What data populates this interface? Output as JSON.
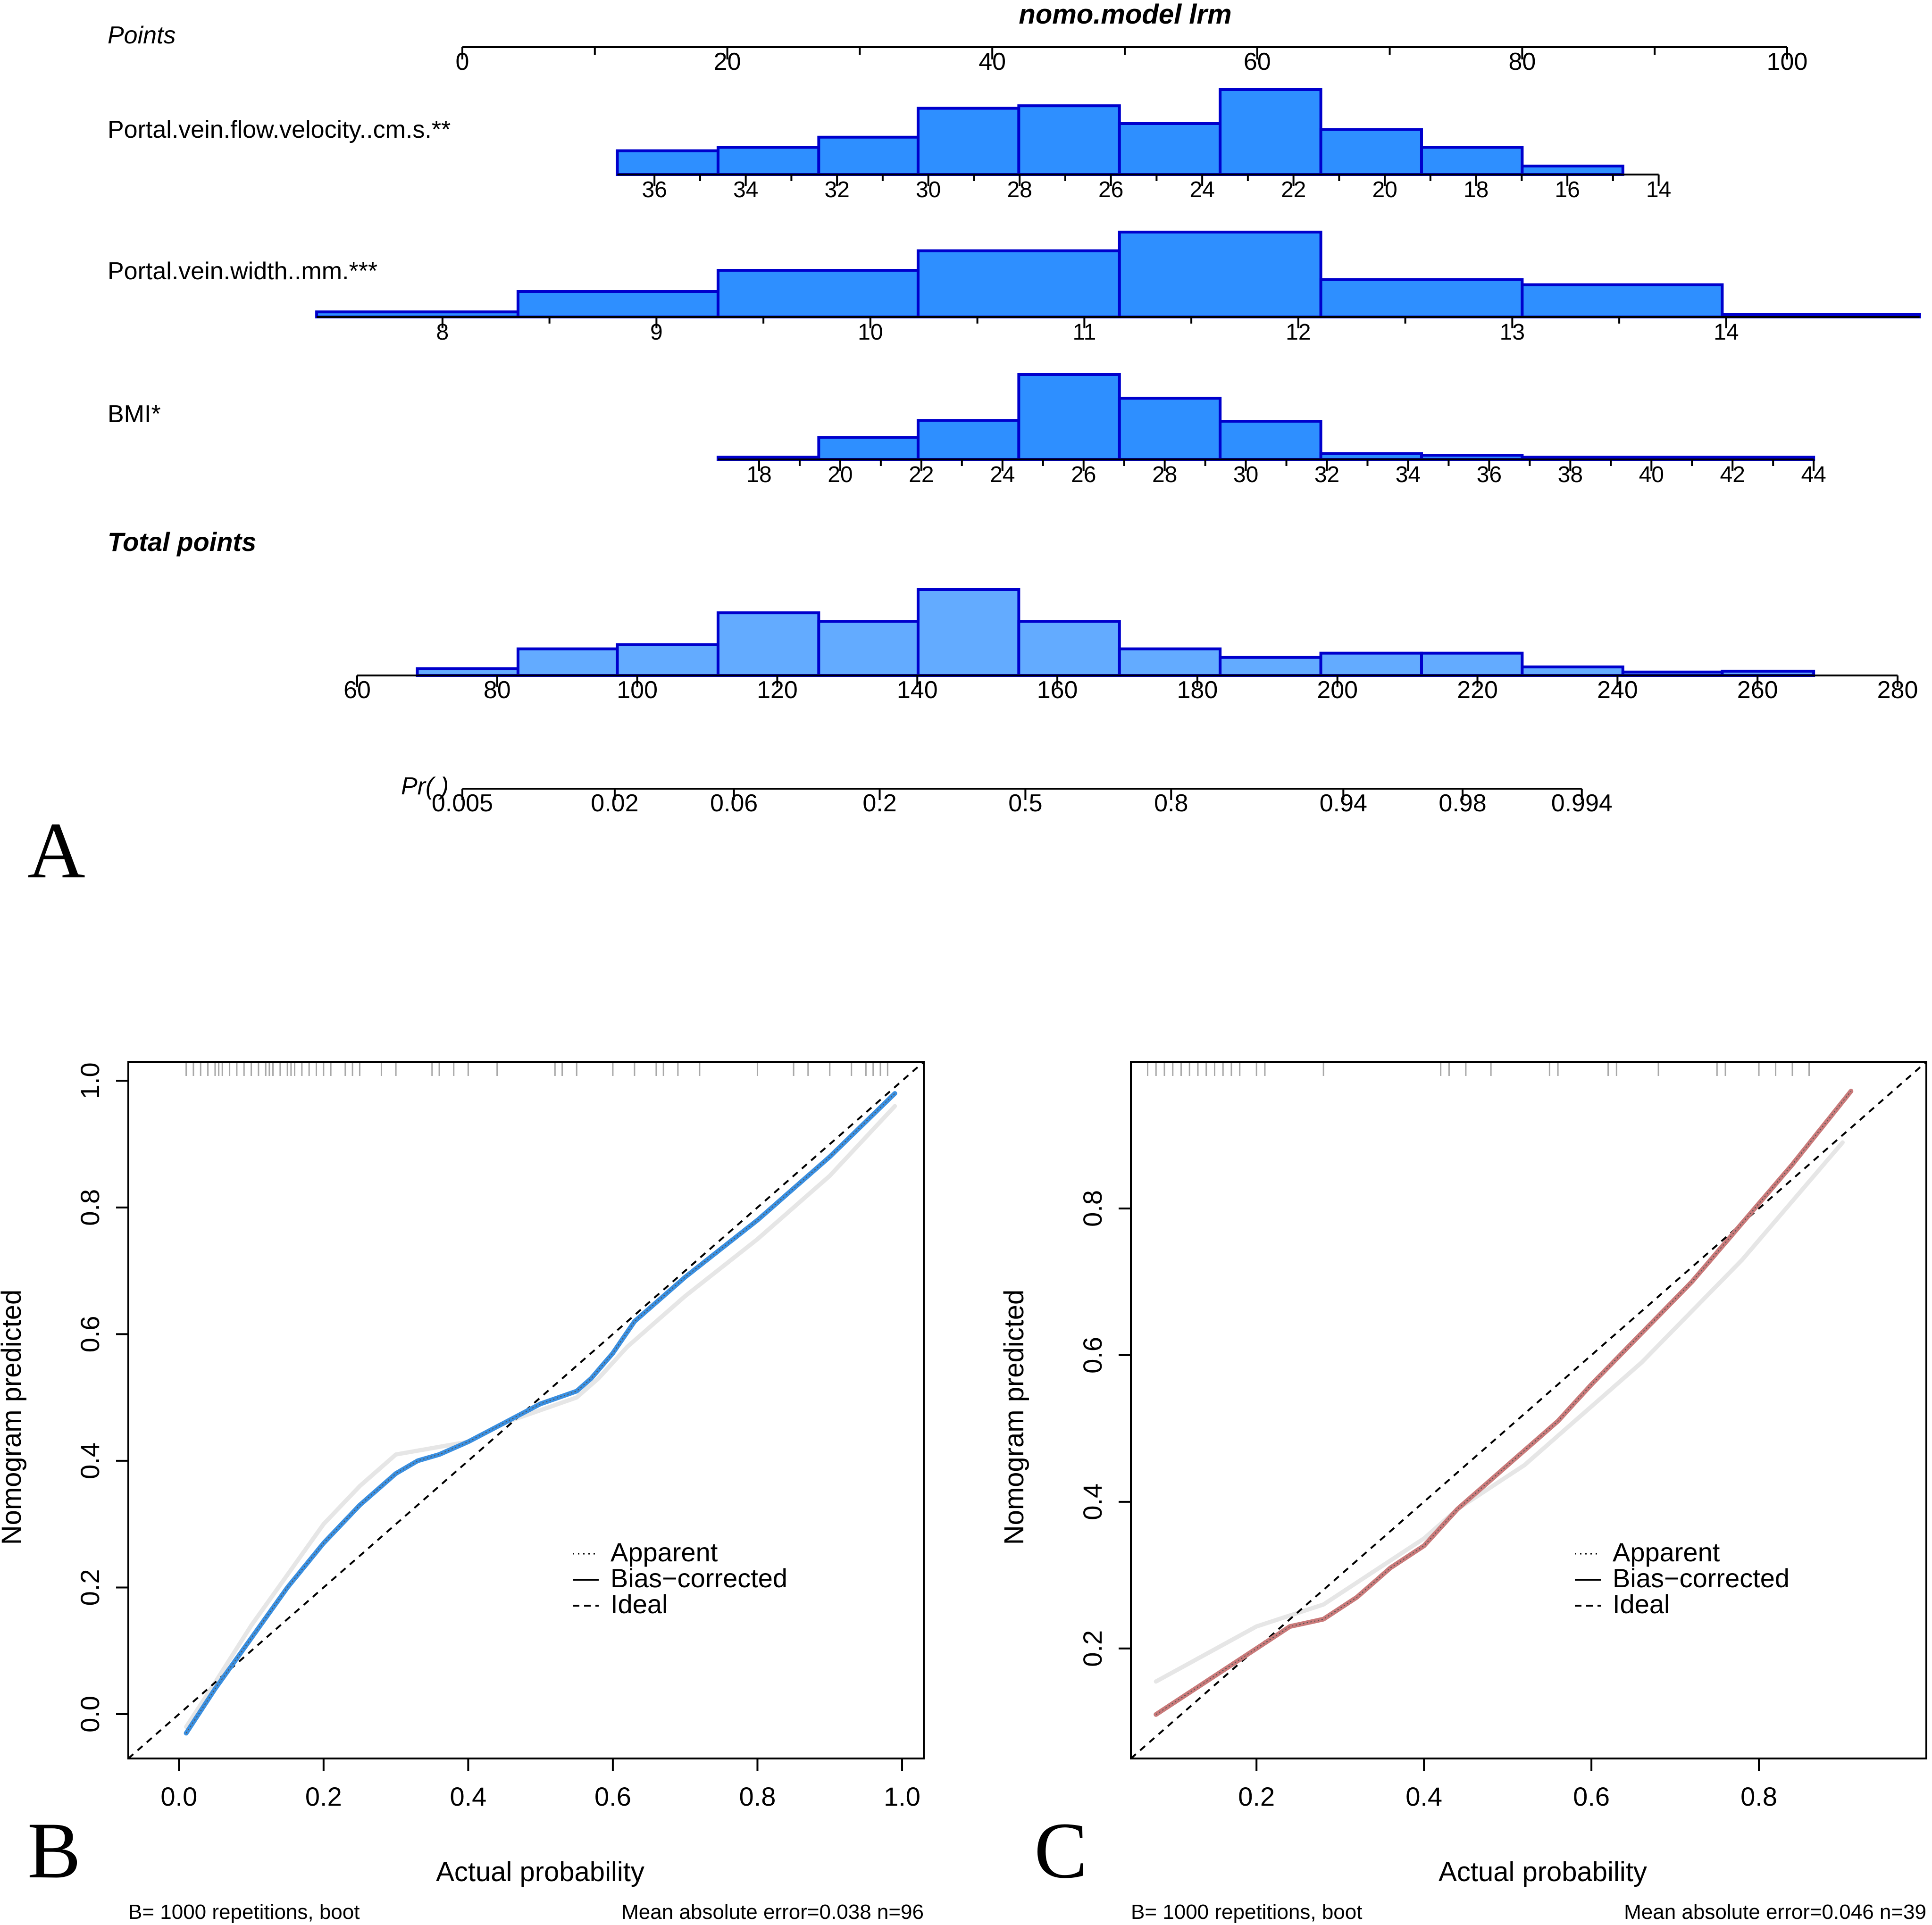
{
  "colors": {
    "hist_fill": "#2E8FFF",
    "hist_fill_light": "#63ABFF",
    "hist_stroke": "#0000CC",
    "curve_b": "#3A8FE0",
    "curve_c": "#C97A7A",
    "apparent_gray": "#E6E6E6"
  },
  "chart_data": [
    {
      "type": "nomogram",
      "panel": "A",
      "title": "nomo.model lrm",
      "points_axis": {
        "label": "Points",
        "min": 0,
        "max": 100,
        "ticks": [
          0,
          10,
          20,
          30,
          40,
          50,
          60,
          70,
          80,
          90,
          100
        ],
        "labels": [
          "0",
          "20",
          "40",
          "60",
          "80",
          "100"
        ]
      },
      "variables": [
        {
          "label": "Portal.vein.flow.velocity..cm.s.**",
          "scale": {
            "value_a": 36,
            "points_a": 14.5,
            "value_b": 14,
            "points_b": 90.3
          },
          "ticks": [
            36,
            35,
            34,
            33,
            32,
            31,
            30,
            29,
            28,
            27,
            26,
            25,
            24,
            23,
            22,
            21,
            20,
            19,
            18,
            17,
            16,
            15,
            14
          ],
          "tick_labels": [
            "36",
            "34",
            "32",
            "30",
            "28",
            "26",
            "24",
            "22",
            "20",
            "18",
            "16",
            "14"
          ],
          "axis_range_points": [
            11.7,
            90.3
          ],
          "hist_edges_points": [
            11.7,
            19.3,
            26.9,
            34.4,
            42.0,
            49.6,
            57.2,
            64.8,
            72.4,
            80.0,
            87.6
          ],
          "hist_heights": [
            0.28,
            0.32,
            0.44,
            0.78,
            0.81,
            0.6,
            1.0,
            0.53,
            0.32,
            0.1
          ]
        },
        {
          "label": "Portal.vein.width..mm.***",
          "scale": {
            "value_a": 8,
            "points_a": -1.5,
            "value_b": 14,
            "points_b": 95.4
          },
          "ticks": [
            8,
            8.5,
            9,
            9.5,
            10,
            10.5,
            11,
            11.5,
            12,
            12.5,
            13,
            13.5,
            14
          ],
          "tick_labels": [
            "8",
            "9",
            "10",
            "11",
            "12",
            "13",
            "14"
          ],
          "axis_range_points": [
            -11.0,
            110.0
          ],
          "hist_edges_points": [
            -11.0,
            4.2,
            19.3,
            34.4,
            49.6,
            64.8,
            80.0,
            95.1,
            110.0
          ],
          "hist_heights": [
            0.06,
            0.3,
            0.55,
            0.78,
            1.0,
            0.44,
            0.38,
            0.02
          ]
        },
        {
          "label": "BMI*",
          "scale": {
            "value_a": 18,
            "points_a": 22.4,
            "value_b": 44,
            "points_b": 102.0
          },
          "ticks": [
            18,
            19,
            20,
            21,
            22,
            23,
            24,
            25,
            26,
            27,
            28,
            29,
            30,
            31,
            32,
            33,
            34,
            35,
            36,
            37,
            38,
            39,
            40,
            41,
            42,
            43,
            44
          ],
          "tick_labels": [
            "18",
            "20",
            "22",
            "24",
            "26",
            "28",
            "30",
            "32",
            "34",
            "36",
            "38",
            "40",
            "42",
            "44"
          ],
          "axis_range_points": [
            19.3,
            102.0
          ],
          "hist_edges_points": [
            19.3,
            26.9,
            34.4,
            42.0,
            49.6,
            57.2,
            64.8,
            72.4,
            80.0,
            87.6,
            95.1,
            102.0
          ],
          "hist_heights": [
            0.02,
            0.26,
            0.46,
            1.0,
            0.72,
            0.45,
            0.07,
            0.05,
            0.02,
            0.0,
            0.02
          ]
        }
      ],
      "total_points": {
        "label": "Total points",
        "min": 60,
        "max": 280,
        "ticks": [
          60,
          80,
          100,
          120,
          140,
          160,
          180,
          200,
          220,
          240,
          260,
          280
        ],
        "labels": [
          "60",
          "80",
          "100",
          "120",
          "140",
          "160",
          "180",
          "200",
          "220",
          "240",
          "260",
          "280"
        ],
        "hist_edges_points": [
          -3.4,
          4.2,
          11.7,
          19.3,
          26.9,
          34.4,
          42.0,
          49.6,
          57.2,
          64.8,
          72.4,
          80.0,
          87.6,
          95.1,
          102.0
        ],
        "hist_heights": [
          0.08,
          0.31,
          0.36,
          0.73,
          0.63,
          1.0,
          0.63,
          0.31,
          0.21,
          0.26,
          0.26,
          0.1,
          0.04,
          0.05
        ]
      },
      "probability": {
        "label": "Pr( )",
        "tick_points": [
          0.0,
          11.5,
          20.5,
          31.5,
          42.5,
          53.5,
          66.5,
          75.5,
          84.5
        ],
        "labels": [
          "0.005",
          "0.02",
          "0.06",
          "0.2",
          "0.5",
          "0.8",
          "0.94",
          "0.98",
          "0.994"
        ],
        "axis_range_points": [
          0.0,
          84.5
        ]
      }
    },
    {
      "type": "line",
      "panel": "B",
      "xlabel": "Actual probability",
      "ylabel": "Nomogram predicted",
      "xlim": [
        -0.07,
        1.03
      ],
      "ylim": [
        -0.07,
        1.03
      ],
      "xticks": [
        0.0,
        0.2,
        0.4,
        0.6,
        0.8,
        1.0
      ],
      "xtick_labels": [
        "0.0",
        "0.2",
        "0.4",
        "0.6",
        "0.8",
        "1.0"
      ],
      "yticks": [
        0.0,
        0.2,
        0.4,
        0.6,
        0.8,
        1.0
      ],
      "ytick_labels": [
        "0.0",
        "0.2",
        "0.4",
        "0.6",
        "0.8",
        "1.0"
      ],
      "rug": [
        0.01,
        0.02,
        0.03,
        0.04,
        0.05,
        0.055,
        0.06,
        0.07,
        0.08,
        0.09,
        0.1,
        0.11,
        0.12,
        0.125,
        0.13,
        0.14,
        0.15,
        0.155,
        0.16,
        0.17,
        0.18,
        0.19,
        0.2,
        0.21,
        0.23,
        0.24,
        0.25,
        0.28,
        0.3,
        0.35,
        0.36,
        0.38,
        0.4,
        0.44,
        0.52,
        0.53,
        0.55,
        0.6,
        0.63,
        0.66,
        0.67,
        0.69,
        0.72,
        0.8,
        0.85,
        0.87,
        0.9,
        0.93,
        0.95,
        0.96,
        0.97,
        0.98
      ],
      "series": [
        {
          "name": "Ideal",
          "x": [
            -0.07,
            1.03
          ],
          "y": [
            -0.07,
            1.03
          ]
        },
        {
          "name": "Bias-corrected",
          "x": [
            0.01,
            0.05,
            0.1,
            0.15,
            0.2,
            0.25,
            0.28,
            0.3,
            0.33,
            0.36,
            0.4,
            0.45,
            0.5,
            0.55,
            0.57,
            0.6,
            0.63,
            0.7,
            0.8,
            0.9,
            0.99
          ],
          "y": [
            -0.03,
            0.04,
            0.12,
            0.2,
            0.27,
            0.33,
            0.36,
            0.38,
            0.4,
            0.41,
            0.43,
            0.46,
            0.49,
            0.51,
            0.53,
            0.57,
            0.62,
            0.69,
            0.78,
            0.88,
            0.98
          ]
        },
        {
          "name": "Apparent",
          "x": [
            0.01,
            0.05,
            0.1,
            0.15,
            0.2,
            0.25,
            0.3,
            0.35,
            0.4,
            0.45,
            0.5,
            0.55,
            0.58,
            0.62,
            0.7,
            0.8,
            0.9,
            0.99
          ],
          "y": [
            -0.02,
            0.05,
            0.14,
            0.22,
            0.3,
            0.36,
            0.41,
            0.42,
            0.43,
            0.46,
            0.48,
            0.5,
            0.53,
            0.58,
            0.66,
            0.75,
            0.85,
            0.96
          ]
        }
      ],
      "legend": [
        "Apparent",
        "Bias−corrected",
        "Ideal"
      ],
      "legend_position": "right",
      "footer_left": "B= 1000 repetitions, boot",
      "footer_right": "Mean absolute error=0.038 n=96"
    },
    {
      "type": "line",
      "panel": "C",
      "xlabel": "Actual probability",
      "ylabel": "Nomogram predicted",
      "xlim": [
        0.05,
        1.0
      ],
      "ylim": [
        0.05,
        1.0
      ],
      "xticks": [
        0.2,
        0.4,
        0.6,
        0.8
      ],
      "xtick_labels": [
        "0.2",
        "0.4",
        "0.6",
        "0.8"
      ],
      "yticks": [
        0.2,
        0.4,
        0.6,
        0.8
      ],
      "ytick_labels": [
        "0.2",
        "0.4",
        "0.6",
        "0.8"
      ],
      "rug": [
        0.07,
        0.08,
        0.09,
        0.1,
        0.11,
        0.12,
        0.13,
        0.14,
        0.15,
        0.16,
        0.17,
        0.18,
        0.2,
        0.21,
        0.28,
        0.42,
        0.43,
        0.45,
        0.48,
        0.55,
        0.56,
        0.62,
        0.63,
        0.68,
        0.75,
        0.76,
        0.8,
        0.82,
        0.84,
        0.86
      ],
      "series": [
        {
          "name": "Ideal",
          "x": [
            0.05,
            1.0
          ],
          "y": [
            0.05,
            1.0
          ]
        },
        {
          "name": "Bias-corrected",
          "x": [
            0.08,
            0.12,
            0.16,
            0.2,
            0.24,
            0.28,
            0.32,
            0.36,
            0.4,
            0.44,
            0.48,
            0.52,
            0.56,
            0.6,
            0.66,
            0.72,
            0.78,
            0.84,
            0.91
          ],
          "y": [
            0.11,
            0.14,
            0.17,
            0.2,
            0.23,
            0.24,
            0.27,
            0.31,
            0.34,
            0.39,
            0.43,
            0.47,
            0.51,
            0.56,
            0.63,
            0.7,
            0.78,
            0.86,
            0.96
          ]
        },
        {
          "name": "Apparent",
          "x": [
            0.08,
            0.12,
            0.16,
            0.2,
            0.24,
            0.28,
            0.32,
            0.36,
            0.4,
            0.44,
            0.48,
            0.52,
            0.56,
            0.6,
            0.66,
            0.72,
            0.78,
            0.84,
            0.9
          ],
          "y": [
            0.155,
            0.18,
            0.205,
            0.23,
            0.245,
            0.26,
            0.29,
            0.32,
            0.35,
            0.39,
            0.42,
            0.45,
            0.49,
            0.53,
            0.59,
            0.66,
            0.73,
            0.81,
            0.89
          ]
        }
      ],
      "legend": [
        "Apparent",
        "Bias−corrected",
        "Ideal"
      ],
      "legend_position": "right",
      "footer_left": "B= 1000 repetitions, boot",
      "footer_right": "Mean absolute error=0.046 n=39"
    }
  ],
  "panel_letters": [
    "A",
    "B",
    "C"
  ]
}
